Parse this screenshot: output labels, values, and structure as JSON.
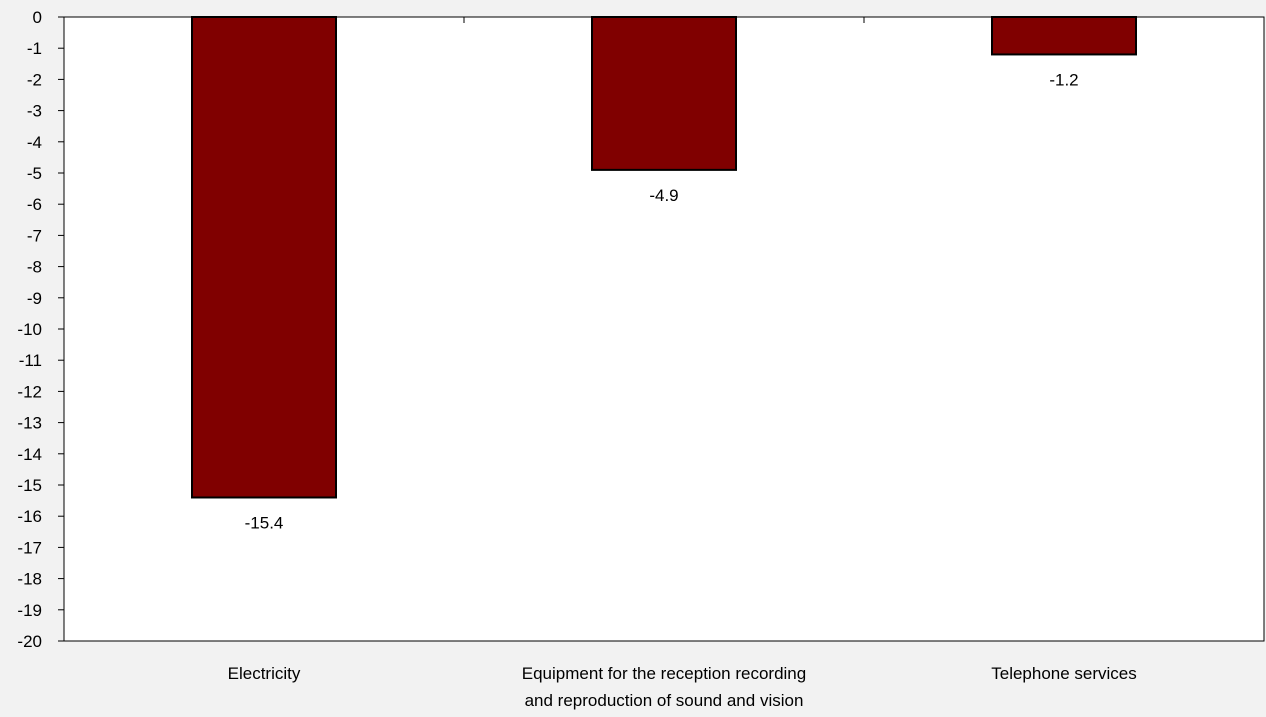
{
  "chart_data": {
    "type": "bar",
    "categories": [
      [
        "Electricity"
      ],
      [
        "Equipment for the reception recording",
        "and reproduction of sound and vision"
      ],
      [
        "Telephone services"
      ]
    ],
    "values": [
      -15.4,
      -4.9,
      -1.2
    ],
    "data_labels": [
      "-15.4",
      "-4.9",
      "-1.2"
    ],
    "title": "",
    "xlabel": "",
    "ylabel": "",
    "ylim": [
      -20,
      0
    ],
    "ytick_step": 1,
    "grid": false,
    "legend": "none",
    "bar_color": "#800000",
    "bar_edge_color": "#000000",
    "plot_background": "#ffffff",
    "page_background": "#f2f2f2"
  }
}
